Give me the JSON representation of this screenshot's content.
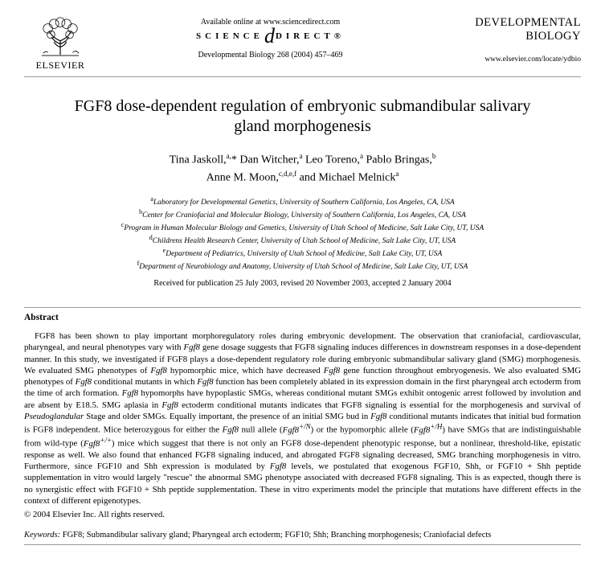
{
  "header": {
    "publisher": "ELSEVIER",
    "available": "Available online at www.sciencedirect.com",
    "sd_left": "SCIENCE",
    "sd_right": "DIRECT®",
    "citation": "Developmental Biology 268 (2004) 457–469",
    "journal_line1": "DEVELOPMENTAL",
    "journal_line2": "BIOLOGY",
    "journal_url": "www.elsevier.com/locate/ydbio"
  },
  "title": "FGF8 dose-dependent regulation of embryonic submandibular salivary gland morphogenesis",
  "authors_html": "Tina Jaskoll,<sup>a,</sup>* Dan Witcher,<sup>a</sup> Leo Toreno,<sup>a</sup> Pablo Bringas,<sup>b</sup><br>Anne M. Moon,<sup>c,d,e,f</sup> and Michael Melnick<sup>a</sup>",
  "affiliations_html": "<sup>a</sup>Laboratory for Developmental Genetics, University of Southern California, Los Angeles, CA, USA<br><sup>b</sup>Center for Craniofacial and Molecular Biology, University of Southern California, Los Angeles, CA, USA<br><sup>c</sup>Program in Human Molecular Biology and Genetics, University of Utah School of Medicine, Salt Lake City, UT, USA<br><sup>d</sup>Childrens Health Research Center, University of Utah School of Medicine, Salt Lake City, UT, USA<br><sup>e</sup>Department of Pediatrics, University of Utah School of Medicine, Salt Lake City, UT, USA<br><sup>f</sup>Department of Neurobiology and Anatomy, University of Utah School of Medicine, Salt Lake City, UT, USA",
  "received": "Received for publication 25 July 2003, revised 20 November 2003, accepted 2 January 2004",
  "abstract_heading": "Abstract",
  "abstract_html": "FGF8 has been shown to play important morphoregulatory roles during embryonic development. The observation that craniofacial, cardiovascular, pharyngeal, and neural phenotypes vary with <i>Fgf8</i> gene dosage suggests that FGF8 signaling induces differences in downstream responses in a dose-dependent manner. In this study, we investigated if FGF8 plays a dose-dependent regulatory role during embryonic submandibular salivary gland (SMG) morphogenesis. We evaluated SMG phenotypes of <i>Fgf8</i> hypomorphic mice, which have decreased <i>Fgf8</i> gene function throughout embryogenesis. We also evaluated SMG phenotypes of <i>Fgf8</i> conditional mutants in which <i>Fgf8</i> function has been completely ablated in its expression domain in the first pharyngeal arch ectoderm from the time of arch formation. <i>Fgf8</i> hypomorphs have hypoplastic SMGs, whereas conditional mutant SMGs exhibit ontogenic arrest followed by involution and are absent by E18.5. SMG aplasia in <i>Fgf8</i> ectoderm conditional mutants indicates that FGF8 signaling is essential for the morphogenesis and survival of <i>Pseudoglandular</i> Stage and older SMGs. Equally important, the presence of an initial SMG bud in <i>Fgf8</i> conditional mutants indicates that initial bud formation is FGF8 independent. Mice heterozygous for either the <i>Fgf8</i> null allele (<i>Fgf8<sup>+/N</sup></i>) or the hypomorphic allele (<i>Fgf8<sup>+/H</sup></i>) have SMGs that are indistinguishable from wild-type (<i>Fgf8<sup>+/+</sup></i>) mice which suggest that there is not only an FGF8 dose-dependent phenotypic response, but a nonlinear, threshold-like, epistatic response as well. We also found that enhanced FGF8 signaling induced, and abrogated FGF8 signaling decreased, SMG branching morphogenesis in vitro. Furthermore, since FGF10 and Shh expression is modulated by <i>Fgf8</i> levels, we postulated that exogenous FGF10, Shh, or FGF10 + Shh peptide supplementation in vitro would largely \"rescue\" the abnormal SMG phenotype associated with decreased FGF8 signaling. This is as expected, though there is no synergistic effect with FGF10 + Shh peptide supplementation. These in vitro experiments model the principle that mutations have different effects in the context of different epigenotypes.",
  "copyright": "© 2004 Elsevier Inc. All rights reserved.",
  "keywords_label": "Keywords:",
  "keywords": " FGF8; Submandibular salivary gland; Pharyngeal arch ectoderm; FGF10; Shh; Branching morphogenesis; Craniofacial defects",
  "colors": {
    "text": "#000000",
    "background": "#ffffff",
    "separator": "#999999"
  }
}
